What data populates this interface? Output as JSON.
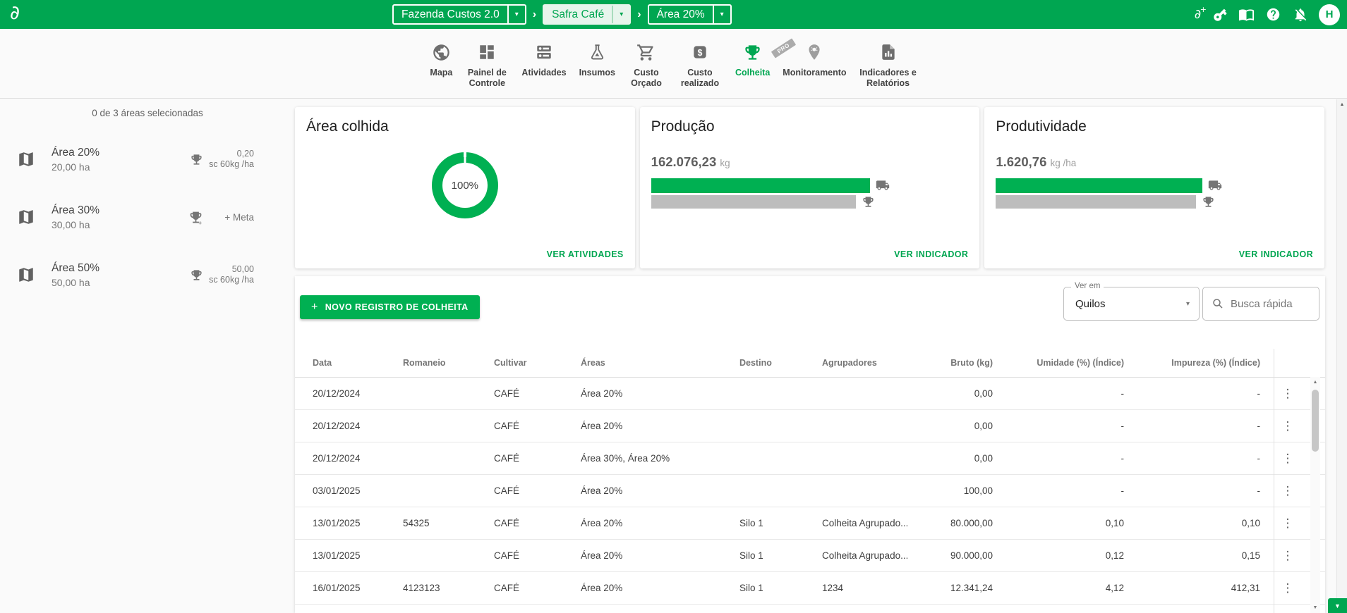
{
  "header": {
    "breadcrumb": {
      "farm": "Fazenda Custos 2.0",
      "season": "Safra Café",
      "area": "Área 20%"
    },
    "avatar_initial": "H"
  },
  "icons": {
    "chevron_right": "›",
    "caret_down": "▾",
    "kebab": "⋮",
    "plus": "+",
    "scroll_up": "▲",
    "scroll_down": "▼"
  },
  "nav": {
    "items": [
      {
        "label": "Mapa",
        "icon": "globe-icon",
        "active": false
      },
      {
        "label": "Painel de Controle",
        "icon": "dashboard-icon",
        "active": false
      },
      {
        "label": "Atividades",
        "icon": "activities-icon",
        "active": false
      },
      {
        "label": "Insumos",
        "icon": "flask-icon",
        "active": false
      },
      {
        "label": "Custo Orçado",
        "icon": "cart-icon",
        "active": false
      },
      {
        "label": "Custo realizado",
        "icon": "dollar-icon",
        "active": false
      },
      {
        "label": "Colheita",
        "icon": "trophy-icon",
        "active": true
      },
      {
        "label": "Monitoramento",
        "icon": "pin-bug-icon",
        "active": false,
        "badge": "PRO"
      },
      {
        "label": "Indicadores e Relatórios",
        "icon": "report-icon",
        "active": false
      }
    ]
  },
  "sidebar": {
    "selection_summary": "0 de 3 áreas selecionadas",
    "areas": [
      {
        "name": "Área 20%",
        "size": "20,00 ha",
        "goal_value": "0,20",
        "goal_unit": "sc 60kg /ha"
      },
      {
        "name": "Área 30%",
        "size": "30,00 ha",
        "goal_action": "+ Meta"
      },
      {
        "name": "Área 50%",
        "size": "50,00 ha",
        "goal_value": "50,00",
        "goal_unit": "sc 60kg /ha"
      }
    ]
  },
  "cards": {
    "area_colhida": {
      "title": "Área colhida",
      "percent_label": "100%",
      "donut_pct": 100,
      "link": "VER ATIVIDADES"
    },
    "producao": {
      "title": "Produção",
      "value": "162.076,23",
      "unit": "kg",
      "bar_green_pct": 69,
      "bar_gray_pct": 64.5,
      "link": "VER INDICADOR"
    },
    "produtividade": {
      "title": "Produtividade",
      "value": "1.620,76",
      "unit": "kg /ha",
      "bar_green_pct": 65,
      "bar_gray_pct": 63,
      "link": "VER INDICADOR"
    }
  },
  "toolbar": {
    "new_record": "NOVO REGISTRO DE COLHEITA",
    "view_in_label": "Ver em",
    "view_in_value": "Quilos",
    "search_placeholder": "Busca rápida"
  },
  "table": {
    "columns": [
      "Data",
      "Romaneio",
      "Cultivar",
      "Áreas",
      "Destino",
      "Agrupadores",
      "Bruto (kg)",
      "Umidade (%) (Índice)",
      "Impureza (%) (Índice)"
    ],
    "rows": [
      [
        "20/12/2024",
        "",
        "CAFÉ",
        "Área 20%",
        "",
        "",
        "0,00",
        "-",
        "-"
      ],
      [
        "20/12/2024",
        "",
        "CAFÉ",
        "Área 20%",
        "",
        "",
        "0,00",
        "-",
        "-"
      ],
      [
        "20/12/2024",
        "",
        "CAFÉ",
        "Área 30%, Área 20%",
        "",
        "",
        "0,00",
        "-",
        "-"
      ],
      [
        "03/01/2025",
        "",
        "CAFÉ",
        "Área 20%",
        "",
        "",
        "100,00",
        "-",
        "-"
      ],
      [
        "13/01/2025",
        "54325",
        "CAFÉ",
        "Área 20%",
        "Silo 1",
        "Colheita Agrupado...",
        "80.000,00",
        "0,10",
        "0,10"
      ],
      [
        "13/01/2025",
        "",
        "CAFÉ",
        "Área 20%",
        "Silo 1",
        "Colheita Agrupado...",
        "90.000,00",
        "0,12",
        "0,15"
      ],
      [
        "16/01/2025",
        "4123123",
        "CAFÉ",
        "Área 20%",
        "Silo 1",
        "1234",
        "12.341,24",
        "4,12",
        "412,31"
      ]
    ]
  },
  "colors": {
    "header_green": "#00a651",
    "accent_green": "#00b052",
    "selected_crumb_bg": "#e7f5ec",
    "page_bg": "#fafafa",
    "panel_bg": "#ffffff",
    "border": "#e0e0e0",
    "bar_gray": "#bdbdbd",
    "text_dark": "#424242",
    "text_gray": "#757575"
  }
}
